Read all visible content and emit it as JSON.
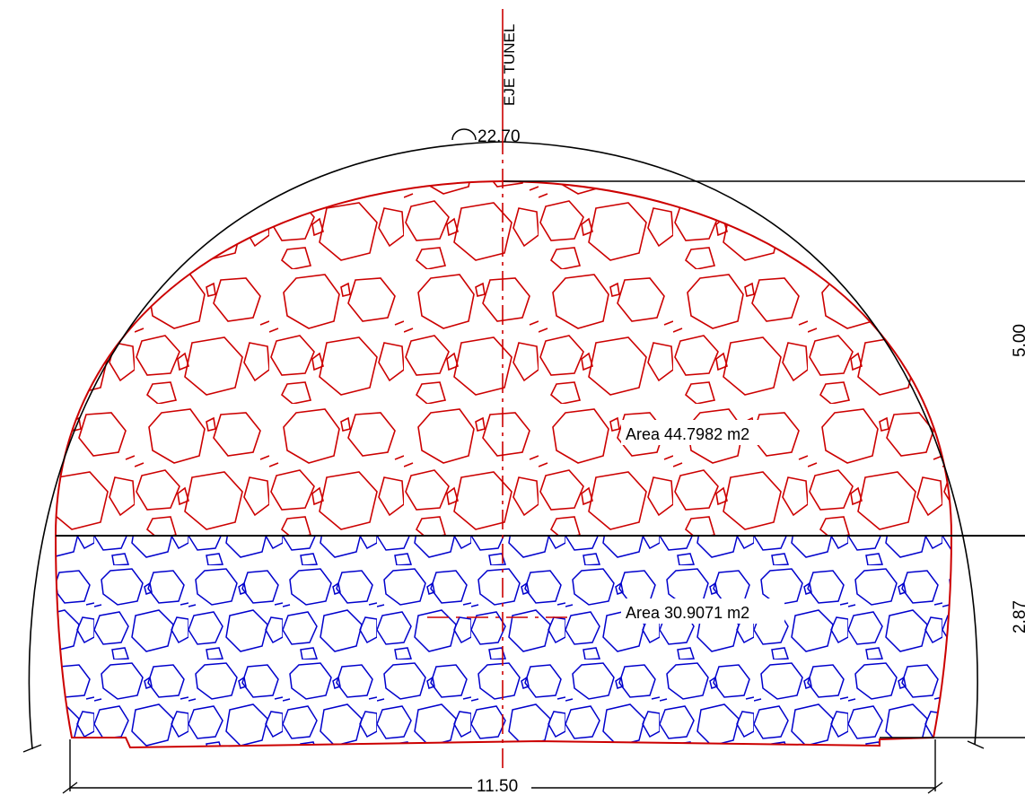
{
  "drawing": {
    "axis_label": "EJE TUNEL",
    "crown_label": "22.70",
    "area_top_label": "Area 44.7982 m2",
    "area_bottom_label": "Area 30.9071 m2",
    "dim_height_top": "5.00",
    "dim_height_bottom": "2.87",
    "dim_width": "11.50"
  },
  "colors": {
    "top_hatch": "#cc0000",
    "bottom_hatch": "#0000cc",
    "outline": "#000000",
    "axis": "#cc0000"
  }
}
